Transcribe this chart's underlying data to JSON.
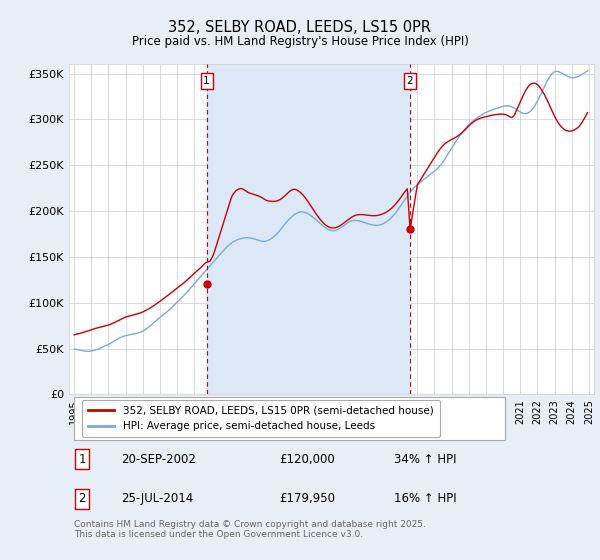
{
  "title": "352, SELBY ROAD, LEEDS, LS15 0PR",
  "subtitle": "Price paid vs. HM Land Registry's House Price Index (HPI)",
  "ylim": [
    0,
    360000
  ],
  "yticks": [
    0,
    50000,
    100000,
    150000,
    200000,
    250000,
    300000,
    350000
  ],
  "ytick_labels": [
    "£0",
    "£50K",
    "£100K",
    "£150K",
    "£200K",
    "£250K",
    "£300K",
    "£350K"
  ],
  "xlim_start": 1994.7,
  "xlim_end": 2025.3,
  "background_color": "#e8eef5",
  "plot_bg_color": "#ffffff",
  "shade_color": "#dce8f5",
  "grid_color": "#cccccc",
  "line_color_price": "#cc0000",
  "line_color_hpi": "#7aaadd",
  "sale1_x": 2002.72,
  "sale1_price": 120000,
  "sale2_x": 2014.56,
  "sale2_price": 179950,
  "legend_label_price": "352, SELBY ROAD, LEEDS, LS15 0PR (semi-detached house)",
  "legend_label_hpi": "HPI: Average price, semi-detached house, Leeds",
  "table_row1": [
    "1",
    "20-SEP-2002",
    "£120,000",
    "34% ↑ HPI"
  ],
  "table_row2": [
    "2",
    "25-JUL-2014",
    "£179,950",
    "16% ↑ HPI"
  ],
  "footer": "Contains HM Land Registry data © Crown copyright and database right 2025.\nThis data is licensed under the Open Government Licence v3.0.",
  "hpi_years": [
    1995.0,
    1995.083,
    1995.167,
    1995.25,
    1995.333,
    1995.417,
    1995.5,
    1995.583,
    1995.667,
    1995.75,
    1995.833,
    1995.917,
    1996.0,
    1996.083,
    1996.167,
    1996.25,
    1996.333,
    1996.417,
    1996.5,
    1996.583,
    1996.667,
    1996.75,
    1996.833,
    1996.917,
    1997.0,
    1997.083,
    1997.167,
    1997.25,
    1997.333,
    1997.417,
    1997.5,
    1997.583,
    1997.667,
    1997.75,
    1997.833,
    1997.917,
    1998.0,
    1998.083,
    1998.167,
    1998.25,
    1998.333,
    1998.417,
    1998.5,
    1998.583,
    1998.667,
    1998.75,
    1998.833,
    1998.917,
    1999.0,
    1999.083,
    1999.167,
    1999.25,
    1999.333,
    1999.417,
    1999.5,
    1999.583,
    1999.667,
    1999.75,
    1999.833,
    1999.917,
    2000.0,
    2000.083,
    2000.167,
    2000.25,
    2000.333,
    2000.417,
    2000.5,
    2000.583,
    2000.667,
    2000.75,
    2000.833,
    2000.917,
    2001.0,
    2001.083,
    2001.167,
    2001.25,
    2001.333,
    2001.417,
    2001.5,
    2001.583,
    2001.667,
    2001.75,
    2001.833,
    2001.917,
    2002.0,
    2002.083,
    2002.167,
    2002.25,
    2002.333,
    2002.417,
    2002.5,
    2002.583,
    2002.667,
    2002.75,
    2002.833,
    2002.917,
    2003.0,
    2003.083,
    2003.167,
    2003.25,
    2003.333,
    2003.417,
    2003.5,
    2003.583,
    2003.667,
    2003.75,
    2003.833,
    2003.917,
    2004.0,
    2004.083,
    2004.167,
    2004.25,
    2004.333,
    2004.417,
    2004.5,
    2004.583,
    2004.667,
    2004.75,
    2004.833,
    2004.917,
    2005.0,
    2005.083,
    2005.167,
    2005.25,
    2005.333,
    2005.417,
    2005.5,
    2005.583,
    2005.667,
    2005.75,
    2005.833,
    2005.917,
    2006.0,
    2006.083,
    2006.167,
    2006.25,
    2006.333,
    2006.417,
    2006.5,
    2006.583,
    2006.667,
    2006.75,
    2006.833,
    2006.917,
    2007.0,
    2007.083,
    2007.167,
    2007.25,
    2007.333,
    2007.417,
    2007.5,
    2007.583,
    2007.667,
    2007.75,
    2007.833,
    2007.917,
    2008.0,
    2008.083,
    2008.167,
    2008.25,
    2008.333,
    2008.417,
    2008.5,
    2008.583,
    2008.667,
    2008.75,
    2008.833,
    2008.917,
    2009.0,
    2009.083,
    2009.167,
    2009.25,
    2009.333,
    2009.417,
    2009.5,
    2009.583,
    2009.667,
    2009.75,
    2009.833,
    2009.917,
    2010.0,
    2010.083,
    2010.167,
    2010.25,
    2010.333,
    2010.417,
    2010.5,
    2010.583,
    2010.667,
    2010.75,
    2010.833,
    2010.917,
    2011.0,
    2011.083,
    2011.167,
    2011.25,
    2011.333,
    2011.417,
    2011.5,
    2011.583,
    2011.667,
    2011.75,
    2011.833,
    2011.917,
    2012.0,
    2012.083,
    2012.167,
    2012.25,
    2012.333,
    2012.417,
    2012.5,
    2012.583,
    2012.667,
    2012.75,
    2012.833,
    2012.917,
    2013.0,
    2013.083,
    2013.167,
    2013.25,
    2013.333,
    2013.417,
    2013.5,
    2013.583,
    2013.667,
    2013.75,
    2013.833,
    2013.917,
    2014.0,
    2014.083,
    2014.167,
    2014.25,
    2014.333,
    2014.417,
    2014.5,
    2014.583,
    2014.667,
    2014.75,
    2014.833,
    2014.917,
    2015.0,
    2015.083,
    2015.167,
    2015.25,
    2015.333,
    2015.417,
    2015.5,
    2015.583,
    2015.667,
    2015.75,
    2015.833,
    2015.917,
    2016.0,
    2016.083,
    2016.167,
    2016.25,
    2016.333,
    2016.417,
    2016.5,
    2016.583,
    2016.667,
    2016.75,
    2016.833,
    2016.917,
    2017.0,
    2017.083,
    2017.167,
    2017.25,
    2017.333,
    2017.417,
    2017.5,
    2017.583,
    2017.667,
    2017.75,
    2017.833,
    2017.917,
    2018.0,
    2018.083,
    2018.167,
    2018.25,
    2018.333,
    2018.417,
    2018.5,
    2018.583,
    2018.667,
    2018.75,
    2018.833,
    2018.917,
    2019.0,
    2019.083,
    2019.167,
    2019.25,
    2019.333,
    2019.417,
    2019.5,
    2019.583,
    2019.667,
    2019.75,
    2019.833,
    2019.917,
    2020.0,
    2020.083,
    2020.167,
    2020.25,
    2020.333,
    2020.417,
    2020.5,
    2020.583,
    2020.667,
    2020.75,
    2020.833,
    2020.917,
    2021.0,
    2021.083,
    2021.167,
    2021.25,
    2021.333,
    2021.417,
    2021.5,
    2021.583,
    2021.667,
    2021.75,
    2021.833,
    2021.917,
    2022.0,
    2022.083,
    2022.167,
    2022.25,
    2022.333,
    2022.417,
    2022.5,
    2022.583,
    2022.667,
    2022.75,
    2022.833,
    2022.917,
    2023.0,
    2023.083,
    2023.167,
    2023.25,
    2023.333,
    2023.417,
    2023.5,
    2023.583,
    2023.667,
    2023.75,
    2023.833,
    2023.917,
    2024.0,
    2024.083,
    2024.167,
    2024.25,
    2024.333,
    2024.417,
    2024.5,
    2024.583,
    2024.667,
    2024.75,
    2024.833,
    2024.917
  ],
  "hpi_values": [
    49500,
    49200,
    48800,
    48500,
    48200,
    47900,
    47600,
    47400,
    47200,
    47000,
    47000,
    47200,
    47400,
    47700,
    48100,
    48500,
    49000,
    49500,
    50200,
    51000,
    51800,
    52500,
    53200,
    53800,
    54500,
    55300,
    56200,
    57200,
    58200,
    59200,
    60100,
    61000,
    61800,
    62500,
    63100,
    63600,
    64000,
    64400,
    64800,
    65100,
    65400,
    65700,
    66000,
    66300,
    66700,
    67200,
    67800,
    68400,
    69100,
    69900,
    70900,
    72000,
    73200,
    74500,
    75900,
    77300,
    78700,
    80100,
    81500,
    82800,
    84000,
    85200,
    86400,
    87600,
    88900,
    90200,
    91600,
    93000,
    94500,
    96000,
    97500,
    99000,
    100500,
    102000,
    103500,
    105100,
    106700,
    108300,
    110000,
    111800,
    113500,
    115200,
    117000,
    118800,
    120600,
    122400,
    124200,
    126000,
    127800,
    129600,
    131400,
    133200,
    135000,
    136800,
    138500,
    140200,
    142000,
    143800,
    145600,
    147400,
    149200,
    151000,
    152800,
    154500,
    156200,
    157900,
    159500,
    161100,
    162600,
    163900,
    165100,
    166200,
    167100,
    167900,
    168600,
    169200,
    169700,
    170100,
    170500,
    170800,
    170900,
    170900,
    170800,
    170600,
    170300,
    170000,
    169600,
    169200,
    168700,
    168200,
    167700,
    167200,
    167000,
    167000,
    167200,
    167600,
    168200,
    169000,
    170000,
    171200,
    172500,
    174000,
    175600,
    177200,
    179000,
    181000,
    183000,
    185000,
    186900,
    188800,
    190500,
    192100,
    193600,
    194900,
    196100,
    197100,
    197900,
    198500,
    198900,
    199100,
    199000,
    198700,
    198200,
    197500,
    196700,
    195700,
    194600,
    193400,
    192100,
    190800,
    189400,
    188000,
    186600,
    185200,
    183900,
    182700,
    181600,
    180600,
    179800,
    179200,
    178800,
    178600,
    178700,
    179000,
    179600,
    180400,
    181300,
    182400,
    183500,
    184700,
    185800,
    186900,
    187800,
    188600,
    189200,
    189600,
    189800,
    189800,
    189600,
    189300,
    188900,
    188400,
    187900,
    187400,
    186900,
    186400,
    185900,
    185500,
    185100,
    184800,
    184600,
    184500,
    184500,
    184700,
    185000,
    185500,
    186100,
    186900,
    187800,
    188900,
    190100,
    191500,
    193000,
    194700,
    196500,
    198400,
    200500,
    202700,
    205000,
    207300,
    209700,
    212000,
    214300,
    216600,
    218700,
    220700,
    222600,
    224300,
    225900,
    227400,
    228800,
    230100,
    231400,
    232600,
    233800,
    235000,
    236200,
    237400,
    238600,
    239800,
    241000,
    242200,
    243400,
    244700,
    246200,
    247800,
    249600,
    251600,
    253800,
    256100,
    258500,
    261000,
    263500,
    266000,
    268500,
    271000,
    273500,
    276000,
    278400,
    280700,
    282900,
    285000,
    287000,
    288900,
    290700,
    292400,
    294000,
    295500,
    296900,
    298200,
    299500,
    300700,
    301900,
    303000,
    304000,
    305000,
    305900,
    306700,
    307500,
    308200,
    308900,
    309600,
    310200,
    310800,
    311400,
    311900,
    312400,
    312900,
    313400,
    313900,
    314300,
    314600,
    314800,
    314800,
    314700,
    314400,
    313900,
    313200,
    312300,
    311300,
    310200,
    309100,
    308100,
    307200,
    306600,
    306300,
    306300,
    306700,
    307500,
    308700,
    310200,
    312100,
    314300,
    316900,
    319700,
    322800,
    326100,
    329400,
    332700,
    336000,
    339200,
    342200,
    344900,
    347300,
    349300,
    350900,
    351900,
    352400,
    352400,
    352000,
    351300,
    350500,
    349600,
    348700,
    347800,
    347000,
    346400,
    345900,
    345600,
    345500,
    345600,
    346000,
    346500,
    347200,
    348000,
    348900,
    349800,
    350800,
    351900,
    353000
  ],
  "price_years": [
    1995.0,
    1995.083,
    1995.167,
    1995.25,
    1995.333,
    1995.417,
    1995.5,
    1995.583,
    1995.667,
    1995.75,
    1995.833,
    1995.917,
    1996.0,
    1996.083,
    1996.167,
    1996.25,
    1996.333,
    1996.417,
    1996.5,
    1996.583,
    1996.667,
    1996.75,
    1996.833,
    1996.917,
    1997.0,
    1997.083,
    1997.167,
    1997.25,
    1997.333,
    1997.417,
    1997.5,
    1997.583,
    1997.667,
    1997.75,
    1997.833,
    1997.917,
    1998.0,
    1998.083,
    1998.167,
    1998.25,
    1998.333,
    1998.417,
    1998.5,
    1998.583,
    1998.667,
    1998.75,
    1998.833,
    1998.917,
    1999.0,
    1999.083,
    1999.167,
    1999.25,
    1999.333,
    1999.417,
    1999.5,
    1999.583,
    1999.667,
    1999.75,
    1999.833,
    1999.917,
    2000.0,
    2000.083,
    2000.167,
    2000.25,
    2000.333,
    2000.417,
    2000.5,
    2000.583,
    2000.667,
    2000.75,
    2000.833,
    2000.917,
    2001.0,
    2001.083,
    2001.167,
    2001.25,
    2001.333,
    2001.417,
    2001.5,
    2001.583,
    2001.667,
    2001.75,
    2001.833,
    2001.917,
    2002.0,
    2002.083,
    2002.167,
    2002.25,
    2002.333,
    2002.417,
    2002.5,
    2002.583,
    2002.667,
    2002.917,
    2003.0,
    2003.083,
    2003.167,
    2003.25,
    2003.333,
    2003.417,
    2003.5,
    2003.583,
    2003.667,
    2003.75,
    2003.833,
    2003.917,
    2004.0,
    2004.083,
    2004.167,
    2004.25,
    2004.333,
    2004.417,
    2004.5,
    2004.583,
    2004.667,
    2004.75,
    2004.833,
    2004.917,
    2005.0,
    2005.083,
    2005.167,
    2005.25,
    2005.333,
    2005.417,
    2005.5,
    2005.583,
    2005.667,
    2005.75,
    2005.833,
    2005.917,
    2006.0,
    2006.083,
    2006.167,
    2006.25,
    2006.333,
    2006.417,
    2006.5,
    2006.583,
    2006.667,
    2006.75,
    2006.833,
    2006.917,
    2007.0,
    2007.083,
    2007.167,
    2007.25,
    2007.333,
    2007.417,
    2007.5,
    2007.583,
    2007.667,
    2007.75,
    2007.833,
    2007.917,
    2008.0,
    2008.083,
    2008.167,
    2008.25,
    2008.333,
    2008.417,
    2008.5,
    2008.583,
    2008.667,
    2008.75,
    2008.833,
    2008.917,
    2009.0,
    2009.083,
    2009.167,
    2009.25,
    2009.333,
    2009.417,
    2009.5,
    2009.583,
    2009.667,
    2009.75,
    2009.833,
    2009.917,
    2010.0,
    2010.083,
    2010.167,
    2010.25,
    2010.333,
    2010.417,
    2010.5,
    2010.583,
    2010.667,
    2010.75,
    2010.833,
    2010.917,
    2011.0,
    2011.083,
    2011.167,
    2011.25,
    2011.333,
    2011.417,
    2011.5,
    2011.583,
    2011.667,
    2011.75,
    2011.833,
    2011.917,
    2012.0,
    2012.083,
    2012.167,
    2012.25,
    2012.333,
    2012.417,
    2012.5,
    2012.583,
    2012.667,
    2012.75,
    2012.833,
    2012.917,
    2013.0,
    2013.083,
    2013.167,
    2013.25,
    2013.333,
    2013.417,
    2013.5,
    2013.583,
    2013.667,
    2013.75,
    2013.833,
    2013.917,
    2014.0,
    2014.083,
    2014.167,
    2014.25,
    2014.333,
    2014.417,
    2014.583,
    2015.0,
    2015.083,
    2015.167,
    2015.25,
    2015.333,
    2015.417,
    2015.5,
    2015.583,
    2015.667,
    2015.75,
    2015.833,
    2015.917,
    2016.0,
    2016.083,
    2016.167,
    2016.25,
    2016.333,
    2016.417,
    2016.5,
    2016.583,
    2016.667,
    2016.75,
    2016.833,
    2016.917,
    2017.0,
    2017.083,
    2017.167,
    2017.25,
    2017.333,
    2017.417,
    2017.5,
    2017.583,
    2017.667,
    2017.75,
    2017.833,
    2017.917,
    2018.0,
    2018.083,
    2018.167,
    2018.25,
    2018.333,
    2018.417,
    2018.5,
    2018.583,
    2018.667,
    2018.75,
    2018.833,
    2018.917,
    2019.0,
    2019.083,
    2019.167,
    2019.25,
    2019.333,
    2019.417,
    2019.5,
    2019.583,
    2019.667,
    2019.75,
    2019.833,
    2019.917,
    2020.0,
    2020.083,
    2020.167,
    2020.25,
    2020.333,
    2020.417,
    2020.5,
    2020.583,
    2020.667,
    2020.75,
    2020.833,
    2020.917,
    2021.0,
    2021.083,
    2021.167,
    2021.25,
    2021.333,
    2021.417,
    2021.5,
    2021.583,
    2021.667,
    2021.75,
    2021.833,
    2021.917,
    2022.0,
    2022.083,
    2022.167,
    2022.25,
    2022.333,
    2022.417,
    2022.5,
    2022.583,
    2022.667,
    2022.75,
    2022.833,
    2022.917,
    2023.0,
    2023.083,
    2023.167,
    2023.25,
    2023.333,
    2023.417,
    2023.5,
    2023.583,
    2023.667,
    2023.75,
    2023.833,
    2023.917,
    2024.0,
    2024.083,
    2024.167,
    2024.25,
    2024.333,
    2024.417,
    2024.5,
    2024.583,
    2024.667,
    2024.75,
    2024.833,
    2024.917
  ],
  "price_values": [
    65000,
    65500,
    65800,
    66000,
    66500,
    67000,
    67500,
    68000,
    68500,
    69000,
    69500,
    70000,
    70500,
    71000,
    71500,
    72000,
    72500,
    72800,
    73200,
    73600,
    74000,
    74400,
    74800,
    75200,
    75700,
    76200,
    76800,
    77500,
    78200,
    79000,
    79800,
    80600,
    81400,
    82200,
    83000,
    83700,
    84300,
    84800,
    85300,
    85700,
    86100,
    86500,
    86900,
    87300,
    87700,
    88200,
    88700,
    89300,
    90000,
    90700,
    91500,
    92300,
    93100,
    94000,
    95000,
    96000,
    97100,
    98200,
    99300,
    100400,
    101500,
    102600,
    103800,
    105000,
    106200,
    107400,
    108600,
    109800,
    111000,
    112200,
    113400,
    114600,
    115800,
    117000,
    118200,
    119400,
    120700,
    122000,
    123400,
    124800,
    126200,
    127600,
    129000,
    130400,
    131800,
    133200,
    134600,
    136000,
    137500,
    139000,
    140600,
    142200,
    143800,
    145400,
    148000,
    151000,
    155000,
    160000,
    165000,
    170000,
    175000,
    180000,
    185000,
    190000,
    195000,
    200000,
    205000,
    210000,
    215000,
    218000,
    220000,
    222000,
    223000,
    224000,
    224500,
    224500,
    224000,
    223000,
    222000,
    221000,
    220000,
    219500,
    219000,
    218500,
    218000,
    217500,
    217000,
    216500,
    215800,
    215000,
    214000,
    213000,
    212000,
    211500,
    211000,
    210800,
    210600,
    210500,
    210600,
    210800,
    211200,
    211800,
    212500,
    213500,
    214700,
    216000,
    217500,
    219000,
    220500,
    221800,
    222800,
    223500,
    223800,
    223500,
    222800,
    221800,
    220600,
    219200,
    217600,
    215800,
    213800,
    211600,
    209300,
    206900,
    204500,
    202100,
    199700,
    197400,
    195200,
    193100,
    191100,
    189200,
    187500,
    186000,
    184700,
    183600,
    182700,
    182100,
    181700,
    181600,
    181700,
    182000,
    182500,
    183200,
    184100,
    185100,
    186200,
    187400,
    188600,
    189800,
    191000,
    192100,
    193200,
    194100,
    194900,
    195500,
    195900,
    196100,
    196200,
    196200,
    196100,
    195900,
    195700,
    195500,
    195300,
    195100,
    195000,
    194900,
    194900,
    195000,
    195200,
    195500,
    195900,
    196400,
    197000,
    197700,
    198500,
    199400,
    200500,
    201700,
    203000,
    204500,
    206100,
    207900,
    209800,
    211800,
    213900,
    216100,
    218300,
    220400,
    222400,
    224300,
    179950,
    228500,
    231000,
    233500,
    236000,
    238500,
    241000,
    243500,
    246000,
    248500,
    251000,
    253500,
    256000,
    258500,
    261000,
    263500,
    265800,
    267900,
    269800,
    271500,
    273000,
    274300,
    275400,
    276400,
    277200,
    278000,
    278800,
    279600,
    280500,
    281500,
    282600,
    283800,
    285100,
    286500,
    288000,
    289600,
    291200,
    292800,
    294300,
    295700,
    297000,
    298100,
    299100,
    299900,
    300600,
    301200,
    301700,
    302200,
    302600,
    303000,
    303400,
    303800,
    304200,
    304500,
    304800,
    305100,
    305300,
    305500,
    305600,
    305700,
    305800,
    305700,
    305500,
    305100,
    304400,
    303500,
    302500,
    302000,
    303000,
    305000,
    308500,
    312000,
    315500,
    319000,
    322500,
    326000,
    329000,
    332000,
    334500,
    336500,
    338000,
    339000,
    339500,
    339500,
    339000,
    338000,
    336500,
    334500,
    332000,
    329500,
    326800,
    323700,
    320500,
    317000,
    313500,
    310000,
    306700,
    303500,
    300500,
    297800,
    295400,
    293300,
    291500,
    290000,
    288800,
    288000,
    287500,
    287200,
    287200,
    287500,
    288000,
    288700,
    289600,
    290700,
    292100,
    294000,
    296200,
    298700,
    301400,
    304300,
    307300
  ]
}
